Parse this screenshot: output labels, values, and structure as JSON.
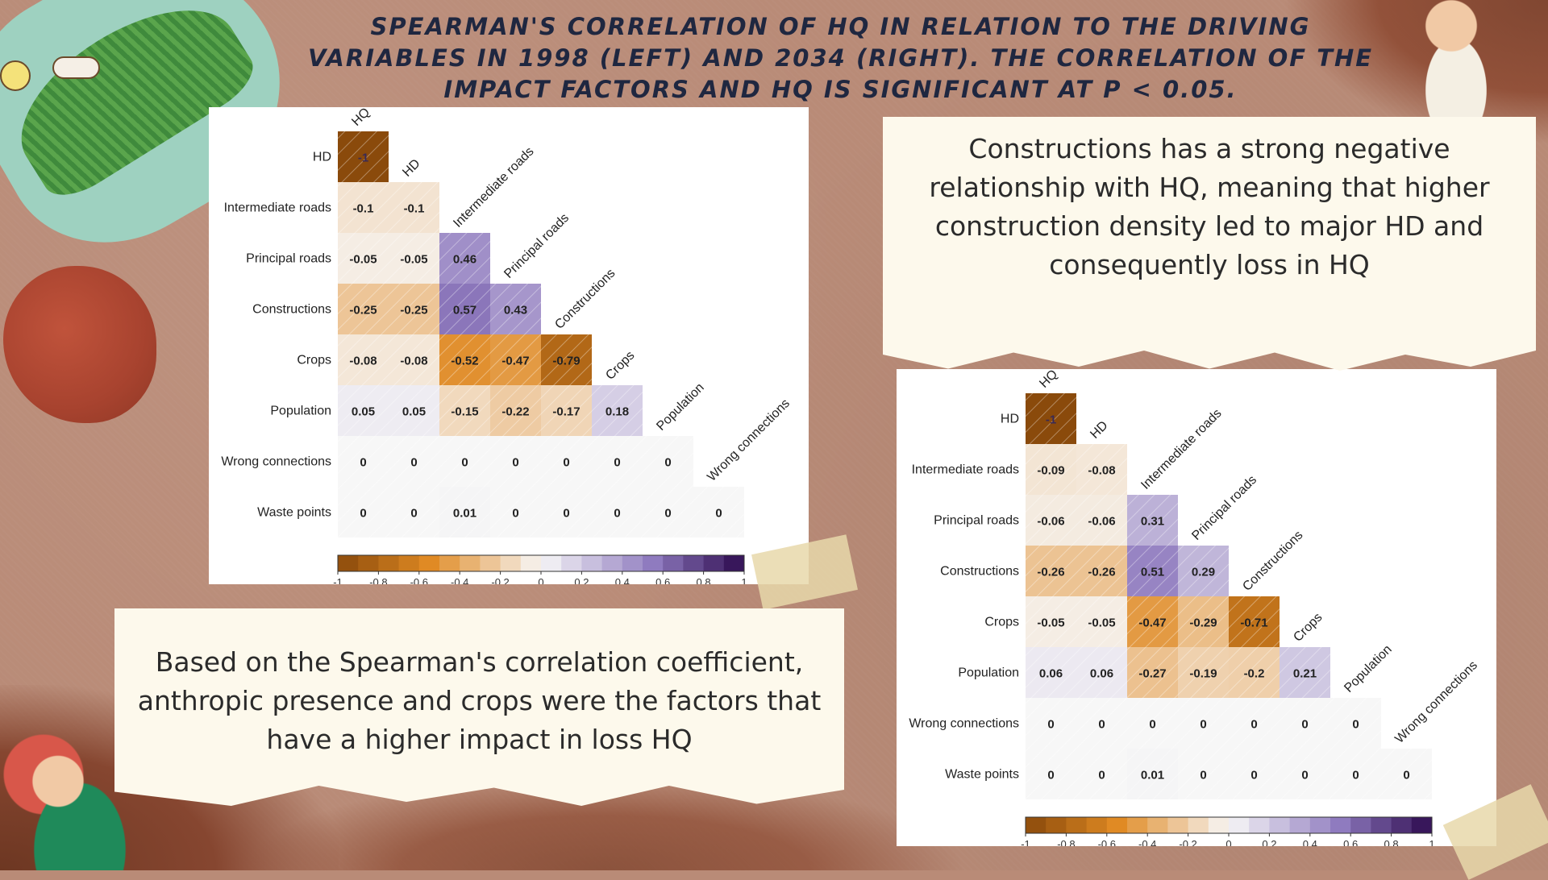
{
  "title": "Spearman's correlation of HQ in relation to the driving variables in 1998 (left) and 2034 (right). The correlation of the impact factors and HQ is significant at p < 0.05.",
  "notes": {
    "right": "Constructions has a strong negative relationship with HQ, meaning that higher construction density led to major HD and consequently loss in HQ",
    "left": "Based on the Spearman's correlation coefficient, anthropic presence and crops were the factors that have a higher impact in loss HQ"
  },
  "colors": {
    "neg_strong": "#8a4a0b",
    "neg_mid": "#e08a24",
    "neutral": "#f7f7f7",
    "pos_mid": "#8f7bbf",
    "pos_strong": "#2d0a4f"
  },
  "chart_data": [
    {
      "type": "heatmap",
      "title": "1998",
      "col_labels": [
        "HQ",
        "HD",
        "Intermediate roads",
        "Principal roads",
        "Constructions",
        "Crops",
        "Population",
        "Wrong connections"
      ],
      "row_labels": [
        "HD",
        "Intermediate roads",
        "Principal roads",
        "Constructions",
        "Crops",
        "Population",
        "Wrong connections",
        "Waste points"
      ],
      "rows": [
        [
          -1
        ],
        [
          -0.1,
          -0.1
        ],
        [
          -0.05,
          -0.05,
          0.46
        ],
        [
          -0.25,
          -0.25,
          0.57,
          0.43
        ],
        [
          -0.08,
          -0.08,
          -0.52,
          -0.47,
          -0.79
        ],
        [
          0.05,
          0.05,
          -0.15,
          -0.22,
          -0.17,
          0.18
        ],
        [
          0,
          0,
          0,
          0,
          0,
          0,
          0
        ],
        [
          0,
          0,
          0.01,
          0,
          0,
          0,
          0,
          0
        ]
      ],
      "display_labels": [
        [
          "-1"
        ],
        [
          "-0.1",
          "-0.1"
        ],
        [
          "-0.05",
          "-0.05",
          "0.46"
        ],
        [
          "-0.25",
          "-0.25",
          "0.57",
          "0.43"
        ],
        [
          "-0.08",
          "-0.08",
          "-0.52",
          "-0.47",
          "-0.79"
        ],
        [
          "0.05",
          "0.05",
          "-0.15",
          "-0.22",
          "-0.17",
          "0.18"
        ],
        [
          "0",
          "0",
          "0",
          "0",
          "0",
          "0",
          "0"
        ],
        [
          "0",
          "0",
          "0.01",
          "0",
          "0",
          "0",
          "0",
          "0"
        ]
      ],
      "colorbar_ticks": [
        "-1",
        "-0.8",
        "-0.6",
        "-0.4",
        "-0.2",
        "0",
        "0.2",
        "0.4",
        "0.6",
        "0.8",
        "1"
      ],
      "colorbar_range": [
        -1,
        1
      ]
    },
    {
      "type": "heatmap",
      "title": "2034",
      "col_labels": [
        "HQ",
        "HD",
        "Intermediate roads",
        "Principal roads",
        "Constructions",
        "Crops",
        "Population",
        "Wrong connections"
      ],
      "row_labels": [
        "HD",
        "Intermediate roads",
        "Principal roads",
        "Constructions",
        "Crops",
        "Population",
        "Wrong connections",
        "Waste points"
      ],
      "rows": [
        [
          -1
        ],
        [
          -0.09,
          -0.08
        ],
        [
          -0.06,
          -0.06,
          0.31
        ],
        [
          -0.26,
          -0.26,
          0.51,
          0.29
        ],
        [
          -0.05,
          -0.05,
          -0.47,
          -0.29,
          -0.71
        ],
        [
          0.06,
          0.06,
          -0.27,
          -0.19,
          -0.2,
          0.21
        ],
        [
          0,
          0,
          0,
          0,
          0,
          0,
          0
        ],
        [
          0,
          0,
          0.01,
          0,
          0,
          0,
          0,
          0
        ]
      ],
      "display_labels": [
        [
          "-1"
        ],
        [
          "-0.09",
          "-0.08"
        ],
        [
          "-0.06",
          "-0.06",
          "0.31"
        ],
        [
          "-0.26",
          "-0.26",
          "0.51",
          "0.29"
        ],
        [
          "-0.05",
          "-0.05",
          "-0.47",
          "-0.29",
          "-0.71"
        ],
        [
          "0.06",
          "0.06",
          "-0.27",
          "-0.19",
          "-0.2",
          "0.21"
        ],
        [
          "0",
          "0",
          "0",
          "0",
          "0",
          "0",
          "0"
        ],
        [
          "0",
          "0",
          "0.01",
          "0",
          "0",
          "0",
          "0",
          "0"
        ]
      ],
      "colorbar_ticks": [
        "-1",
        "-0.8",
        "-0.6",
        "-0.4",
        "-0.2",
        "0",
        "0.2",
        "0.4",
        "0.6",
        "0.8",
        "1"
      ],
      "colorbar_range": [
        -1,
        1
      ]
    }
  ]
}
